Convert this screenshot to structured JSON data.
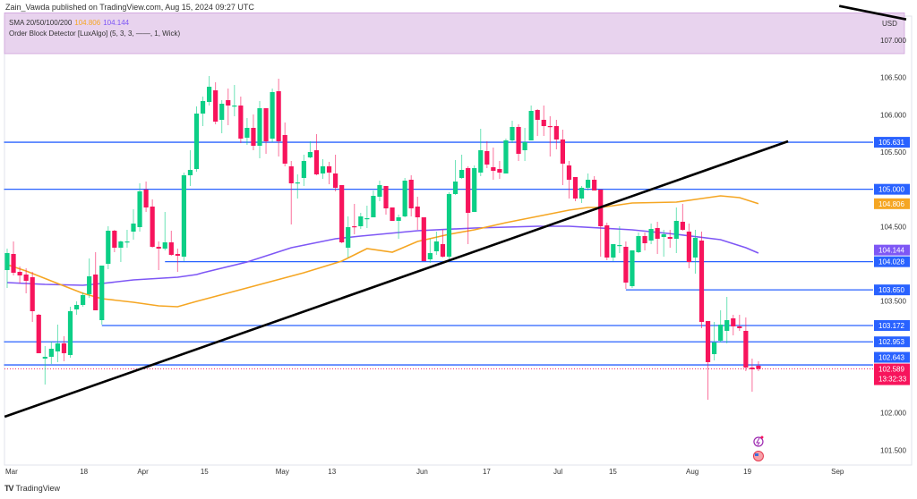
{
  "header": {
    "published": "Zain_Vawda published on TradingView.com, Aug 15, 2024 09:27 UTC"
  },
  "legend": {
    "sma_label": "SMA 20/50/100/200",
    "sma_value_1": "104.806",
    "sma_value_2": "104.144",
    "indicator": "Order Block Detector [LuxAlgo] (5, 3, 3, ——, 1, Wick)"
  },
  "currency": "USD",
  "footer": {
    "brand": "TradingView"
  },
  "countdown": "13:32:33",
  "colors": {
    "up": "#0ccf86",
    "down": "#f7145c",
    "level": "#2962ff",
    "sma_orange": "#f5a623",
    "sma_purple": "#7e57f5",
    "order_block_zone": "#e8d3ee",
    "trendline": "#000000"
  },
  "chart_data": {
    "type": "candlestick",
    "title": "",
    "ylim": [
      101.3,
      107.2
    ],
    "grid": false,
    "y_ticks": [
      "107.000",
      "106.500",
      "106.000",
      "105.500",
      "104.500",
      "103.500",
      "102.000",
      "101.500"
    ],
    "x_ticks": [
      {
        "label": "Mar",
        "bar": 1
      },
      {
        "label": "18",
        "bar": 12.8
      },
      {
        "label": "Apr",
        "bar": 21.9
      },
      {
        "label": "15",
        "bar": 31.9
      },
      {
        "label": "May",
        "bar": 43.8
      },
      {
        "label": "13",
        "bar": 52.1
      },
      {
        "label": "Jun",
        "bar": 66.1
      },
      {
        "label": "17",
        "bar": 76.6
      },
      {
        "label": "Jul",
        "bar": 87.8
      },
      {
        "label": "15",
        "bar": 96.6
      },
      {
        "label": "Aug",
        "bar": 108.8
      },
      {
        "label": "19",
        "bar": 117.9
      },
      {
        "label": "Sep",
        "bar": 131.8
      }
    ],
    "ohlc_fields": [
      "open",
      "high",
      "low",
      "close"
    ],
    "candles": [
      [
        103.916,
        104.204,
        103.676,
        104.144
      ],
      [
        104.132,
        104.3,
        103.844,
        103.88
      ],
      [
        103.892,
        103.964,
        103.736,
        103.844
      ],
      [
        103.856,
        103.94,
        103.604,
        103.772
      ],
      [
        103.82,
        103.892,
        103.22,
        103.364
      ],
      [
        103.316,
        103.328,
        102.8,
        102.8
      ],
      [
        102.728,
        102.896,
        102.38,
        102.752
      ],
      [
        102.752,
        102.956,
        102.656,
        102.86
      ],
      [
        102.824,
        103.184,
        102.68,
        102.932
      ],
      [
        102.932,
        103.028,
        102.692,
        102.8
      ],
      [
        102.776,
        103.424,
        102.74,
        103.364
      ],
      [
        103.388,
        103.496,
        103.316,
        103.448
      ],
      [
        103.448,
        103.616,
        103.424,
        103.58
      ],
      [
        103.592,
        104.072,
        103.544,
        103.832
      ],
      [
        103.856,
        104.156,
        103.376,
        103.376
      ],
      [
        103.244,
        103.976,
        103.184,
        103.976
      ],
      [
        104.0,
        104.504,
        103.928,
        104.444
      ],
      [
        104.444,
        104.456,
        104.156,
        104.216
      ],
      [
        104.216,
        104.312,
        104.024,
        104.3
      ],
      [
        104.296,
        104.456,
        104.216,
        104.3
      ],
      [
        104.432,
        104.732,
        104.324,
        104.54
      ],
      [
        104.492,
        105.08,
        104.432,
        104.972
      ],
      [
        104.996,
        105.104,
        104.696,
        104.756
      ],
      [
        104.768,
        104.864,
        104.216,
        104.228
      ],
      [
        104.228,
        104.3,
        103.916,
        104.204
      ],
      [
        104.204,
        104.696,
        104.18,
        104.288
      ],
      [
        104.288,
        104.444,
        104.108,
        104.12
      ],
      [
        104.132,
        104.204,
        103.892,
        104.108
      ],
      [
        104.096,
        105.224,
        104.036,
        105.188
      ],
      [
        105.188,
        105.524,
        105.044,
        105.26
      ],
      [
        105.272,
        106.112,
        105.236,
        106.016
      ],
      [
        106.016,
        106.244,
        105.848,
        106.184
      ],
      [
        106.172,
        106.52,
        106.124,
        106.376
      ],
      [
        106.328,
        106.436,
        105.872,
        105.908
      ],
      [
        105.932,
        106.196,
        105.752,
        106.148
      ],
      [
        106.196,
        106.352,
        105.86,
        106.124
      ],
      [
        106.124,
        106.4,
        105.98,
        106.124
      ],
      [
        106.124,
        106.244,
        105.62,
        105.68
      ],
      [
        105.692,
        105.956,
        105.596,
        105.824
      ],
      [
        105.824,
        106.004,
        105.524,
        105.584
      ],
      [
        105.584,
        106.184,
        105.416,
        106.088
      ],
      [
        106.088,
        106.088,
        105.476,
        105.644
      ],
      [
        105.68,
        106.352,
        105.632,
        106.304
      ],
      [
        106.316,
        106.484,
        105.44,
        105.644
      ],
      [
        105.728,
        105.896,
        105.308,
        105.344
      ],
      [
        105.308,
        105.38,
        104.528,
        105.08
      ],
      [
        105.092,
        105.2,
        104.876,
        105.092
      ],
      [
        105.152,
        105.464,
        105.044,
        105.38
      ],
      [
        105.428,
        105.644,
        105.416,
        105.5
      ],
      [
        105.524,
        105.74,
        105.188,
        105.2
      ],
      [
        105.212,
        105.404,
        105.14,
        105.308
      ],
      [
        105.308,
        105.368,
        105.068,
        105.224
      ],
      [
        105.212,
        105.464,
        104.972,
        105.02
      ],
      [
        105.056,
        105.056,
        104.276,
        104.288
      ],
      [
        104.216,
        104.636,
        104.084,
        104.492
      ],
      [
        104.504,
        104.804,
        104.396,
        104.492
      ],
      [
        104.504,
        104.684,
        104.468,
        104.636
      ],
      [
        104.612,
        104.78,
        104.48,
        104.612
      ],
      [
        104.624,
        104.984,
        104.624,
        104.912
      ],
      [
        104.9,
        105.116,
        104.84,
        105.056
      ],
      [
        105.044,
        105.044,
        104.66,
        104.744
      ],
      [
        104.756,
        104.756,
        104.576,
        104.576
      ],
      [
        104.576,
        104.66,
        104.336,
        104.624
      ],
      [
        104.636,
        105.152,
        104.624,
        105.116
      ],
      [
        105.128,
        105.188,
        104.636,
        104.744
      ],
      [
        104.768,
        104.9,
        104.456,
        104.624
      ],
      [
        104.624,
        104.624,
        104.036,
        104.036
      ],
      [
        104.06,
        104.336,
        104.012,
        104.144
      ],
      [
        104.168,
        104.432,
        104.12,
        104.3
      ],
      [
        104.264,
        104.456,
        104.084,
        104.096
      ],
      [
        104.096,
        104.96,
        104.06,
        104.936
      ],
      [
        104.936,
        105.392,
        104.924,
        105.104
      ],
      [
        105.152,
        105.464,
        105.14,
        105.26
      ],
      [
        105.284,
        105.308,
        104.264,
        104.684
      ],
      [
        104.696,
        105.32,
        104.696,
        105.284
      ],
      [
        105.224,
        105.812,
        105.176,
        105.524
      ],
      [
        105.512,
        105.644,
        105.284,
        105.332
      ],
      [
        105.296,
        105.56,
        105.128,
        105.248
      ],
      [
        105.272,
        105.38,
        105.14,
        105.224
      ],
      [
        105.212,
        105.68,
        105.212,
        105.656
      ],
      [
        105.656,
        105.92,
        105.62,
        105.836
      ],
      [
        105.836,
        105.872,
        105.38,
        105.476
      ],
      [
        105.524,
        105.824,
        105.38,
        105.632
      ],
      [
        105.656,
        106.124,
        105.656,
        106.052
      ],
      [
        106.064,
        106.076,
        105.716,
        105.932
      ],
      [
        105.932,
        106.124,
        105.716,
        105.848
      ],
      [
        105.848,
        105.98,
        105.44,
        105.836
      ],
      [
        105.848,
        105.932,
        105.536,
        105.668
      ],
      [
        105.668,
        105.8,
        105.056,
        105.344
      ],
      [
        105.32,
        105.38,
        104.876,
        105.128
      ],
      [
        105.164,
        105.164,
        104.84,
        104.876
      ],
      [
        104.876,
        105.044,
        104.816,
        105.02
      ],
      [
        105.02,
        105.212,
        104.984,
        105.128
      ],
      [
        105.128,
        105.176,
        104.984,
        104.984
      ],
      [
        104.996,
        104.996,
        104.096,
        104.504
      ],
      [
        104.516,
        104.552,
        104.048,
        104.084
      ],
      [
        104.084,
        104.264,
        104.036,
        104.264
      ],
      [
        104.252,
        104.504,
        104.144,
        104.252
      ],
      [
        104.228,
        104.3,
        103.664,
        103.748
      ],
      [
        103.7,
        104.18,
        103.676,
        104.18
      ],
      [
        104.156,
        104.42,
        104.144,
        104.372
      ],
      [
        104.372,
        104.42,
        104.18,
        104.276
      ],
      [
        104.312,
        104.54,
        104.264,
        104.468
      ],
      [
        104.48,
        104.564,
        104.132,
        104.336
      ],
      [
        104.36,
        104.456,
        104.096,
        104.396
      ],
      [
        104.36,
        104.456,
        104.216,
        104.336
      ],
      [
        104.336,
        104.756,
        104.144,
        104.576
      ],
      [
        104.564,
        104.804,
        104.444,
        104.456
      ],
      [
        104.432,
        104.54,
        103.94,
        104.024
      ],
      [
        104.084,
        104.456,
        103.868,
        104.348
      ],
      [
        104.312,
        104.432,
        103.136,
        103.22
      ],
      [
        103.232,
        103.232,
        102.176,
        102.68
      ],
      [
        102.788,
        103.22,
        102.704,
        102.944
      ],
      [
        102.968,
        103.376,
        102.944,
        103.184
      ],
      [
        103.1,
        103.556,
        102.932,
        103.244
      ],
      [
        103.268,
        103.316,
        103.04,
        103.16
      ],
      [
        103.16,
        103.316,
        103.1,
        103.136
      ],
      [
        103.1,
        103.28,
        102.56,
        102.608
      ],
      [
        102.608,
        102.728,
        102.284,
        102.584
      ],
      [
        102.632,
        102.692,
        102.56,
        102.589
      ]
    ],
    "sma_orange": [
      [
        1,
        103.988
      ],
      [
        4,
        103.904
      ],
      [
        9,
        103.736
      ],
      [
        13,
        103.604
      ],
      [
        16,
        103.532
      ],
      [
        21,
        103.484
      ],
      [
        25,
        103.436
      ],
      [
        28,
        103.424
      ],
      [
        31,
        103.496
      ],
      [
        48,
        103.88
      ],
      [
        54,
        104.036
      ],
      [
        58,
        104.204
      ],
      [
        62,
        104.156
      ],
      [
        66,
        104.3
      ],
      [
        71,
        104.396
      ],
      [
        75,
        104.456
      ],
      [
        80,
        104.552
      ],
      [
        85,
        104.636
      ],
      [
        90,
        104.72
      ],
      [
        93,
        104.756
      ],
      [
        95,
        104.756
      ],
      [
        100,
        104.816
      ],
      [
        107,
        104.828
      ],
      [
        111,
        104.876
      ],
      [
        114,
        104.912
      ],
      [
        117,
        104.888
      ],
      [
        120,
        104.806
      ]
    ],
    "sma_purple": [
      [
        1,
        103.748
      ],
      [
        7,
        103.724
      ],
      [
        13,
        103.712
      ],
      [
        16,
        103.736
      ],
      [
        21,
        103.784
      ],
      [
        28,
        103.82
      ],
      [
        31,
        103.856
      ],
      [
        32,
        103.88
      ],
      [
        39,
        104.024
      ],
      [
        46,
        104.216
      ],
      [
        53,
        104.336
      ],
      [
        57,
        104.372
      ],
      [
        66,
        104.444
      ],
      [
        75,
        104.48
      ],
      [
        85,
        104.504
      ],
      [
        90,
        104.504
      ],
      [
        100,
        104.456
      ],
      [
        107,
        104.396
      ],
      [
        114,
        104.324
      ],
      [
        118,
        104.216
      ],
      [
        120,
        104.144
      ]
    ],
    "trendlines": [
      {
        "from": [
          0.6,
          101.948
        ],
        "to": [
          124.7,
          105.644
        ]
      },
      {
        "from": [
          132.8,
          107.46
        ],
        "to": [
          143.4,
          107.28
        ]
      }
    ],
    "order_block_zone": [
      106.82,
      107.2
    ],
    "levels": [
      {
        "price": "105.631",
        "from_bar": 0.5
      },
      {
        "price": "105.000",
        "from_bar": 0.5
      },
      {
        "price": "104.028",
        "from_bar": 26
      },
      {
        "price": "103.650",
        "from_bar": 99
      },
      {
        "price": "103.172",
        "from_bar": 16
      },
      {
        "price": "102.953",
        "from_bar": 0.5
      },
      {
        "price": "102.643",
        "from_bar": 0.5
      }
    ],
    "axis_badges": [
      {
        "text": "104.806",
        "color": "#f5a623"
      },
      {
        "text": "104.144",
        "color": "#7e57f5"
      }
    ],
    "last_price": "102.589"
  }
}
